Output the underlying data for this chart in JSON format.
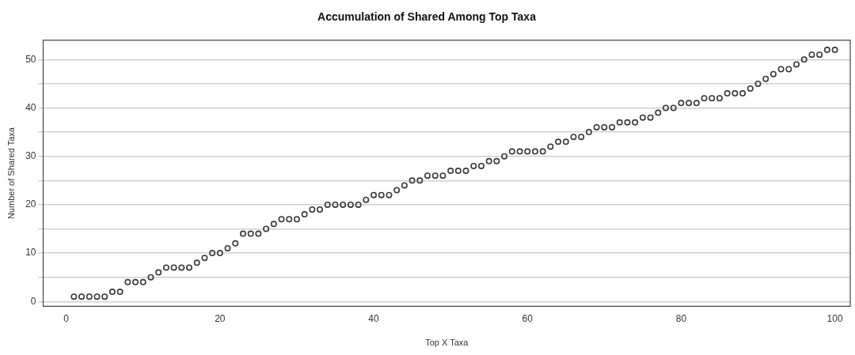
{
  "chart_data": {
    "type": "scatter",
    "title": "Accumulation of Shared Among Top Taxa",
    "xlabel": "Top X Taxa",
    "ylabel": "Number of Shared Taxa",
    "x": [
      1,
      2,
      3,
      4,
      5,
      6,
      7,
      8,
      9,
      10,
      11,
      12,
      13,
      14,
      15,
      16,
      17,
      18,
      19,
      20,
      21,
      22,
      23,
      24,
      25,
      26,
      27,
      28,
      29,
      30,
      31,
      32,
      33,
      34,
      35,
      36,
      37,
      38,
      39,
      40,
      41,
      42,
      43,
      44,
      45,
      46,
      47,
      48,
      49,
      50,
      51,
      52,
      53,
      54,
      55,
      56,
      57,
      58,
      59,
      60,
      61,
      62,
      63,
      64,
      65,
      66,
      67,
      68,
      69,
      70,
      71,
      72,
      73,
      74,
      75,
      76,
      77,
      78,
      79,
      80,
      81,
      82,
      83,
      84,
      85,
      86,
      87,
      88,
      89,
      90,
      91,
      92,
      93,
      94,
      95,
      96,
      97,
      98,
      99,
      100
    ],
    "values": [
      1,
      1,
      1,
      1,
      1,
      2,
      2,
      4,
      4,
      4,
      5,
      6,
      7,
      7,
      7,
      7,
      8,
      9,
      10,
      10,
      11,
      12,
      14,
      14,
      14,
      15,
      16,
      17,
      17,
      17,
      18,
      19,
      19,
      20,
      20,
      20,
      20,
      20,
      21,
      22,
      22,
      22,
      23,
      24,
      25,
      25,
      26,
      26,
      26,
      27,
      27,
      27,
      28,
      28,
      29,
      29,
      30,
      31,
      31,
      31,
      31,
      31,
      32,
      33,
      33,
      34,
      34,
      35,
      36,
      36,
      36,
      37,
      37,
      37,
      38,
      38,
      39,
      40,
      40,
      41,
      41,
      41,
      42,
      42,
      42,
      43,
      43,
      43,
      44,
      45,
      46,
      47,
      48,
      48,
      49,
      50,
      51,
      51,
      52,
      52
    ],
    "color": "#3a3a3a",
    "marker": "circle",
    "grid": "y",
    "xlim": [
      -3,
      102
    ],
    "ylim": [
      -1,
      54
    ],
    "xticks": [
      0,
      20,
      40,
      60,
      80,
      100
    ],
    "yticks": [
      0,
      {
        "value": 5,
        "label": null
      },
      10,
      {
        "value": 15,
        "label": null
      },
      20,
      {
        "value": 25,
        "label": null
      },
      30,
      {
        "value": 35,
        "label": null
      },
      40,
      {
        "value": 45,
        "label": null
      },
      50
    ]
  }
}
